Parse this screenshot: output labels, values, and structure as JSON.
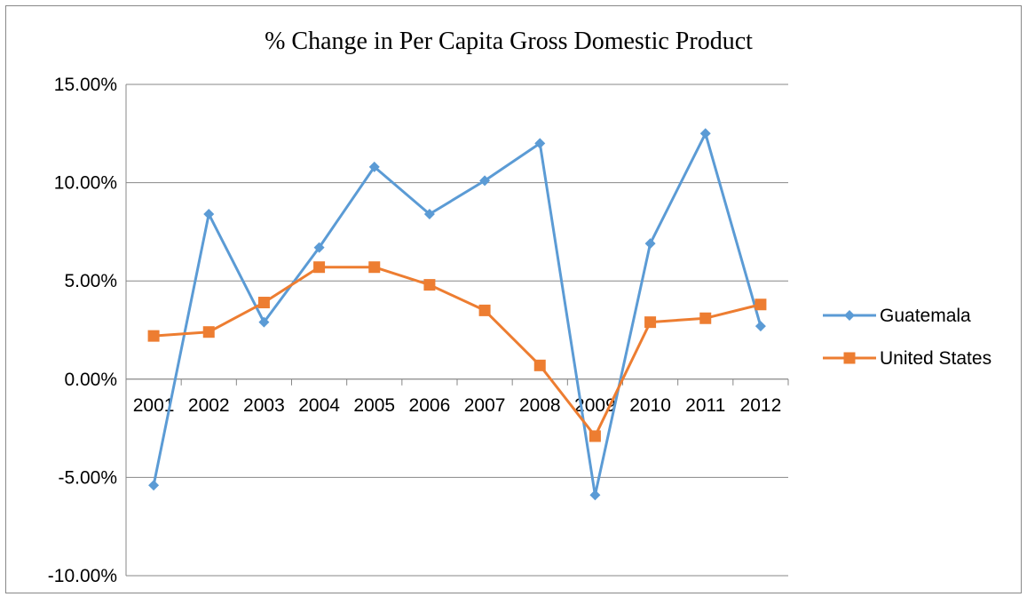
{
  "chart_data": {
    "type": "line",
    "title": "% Change in Per Capita Gross Domestic Product",
    "xlabel": "",
    "ylabel": "",
    "categories": [
      "2001",
      "2002",
      "2003",
      "2004",
      "2005",
      "2006",
      "2007",
      "2008",
      "2009",
      "2010",
      "2011",
      "2012"
    ],
    "ylim": [
      -0.1,
      0.15
    ],
    "yticks": [
      -0.1,
      -0.05,
      0.0,
      0.05,
      0.1,
      0.15
    ],
    "ytick_labels": [
      "-10.00%",
      "-5.00%",
      "0.00%",
      "5.00%",
      "10.00%",
      "15.00%"
    ],
    "grid": "horizontal",
    "legend_position": "right",
    "series": [
      {
        "name": "Guatemala",
        "color": "#5B9BD5",
        "marker": "diamond",
        "values": [
          -0.054,
          0.084,
          0.029,
          0.067,
          0.108,
          0.084,
          0.101,
          0.12,
          -0.059,
          0.069,
          0.125,
          0.027
        ]
      },
      {
        "name": "United States",
        "color": "#ED7D31",
        "marker": "square",
        "values": [
          0.022,
          0.024,
          0.039,
          0.057,
          0.057,
          0.048,
          0.035,
          0.007,
          -0.029,
          0.029,
          0.031,
          0.038
        ]
      }
    ]
  }
}
